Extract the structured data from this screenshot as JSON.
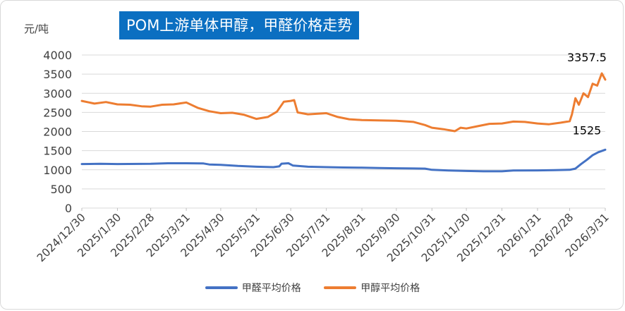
{
  "chart_data": {
    "type": "line",
    "title": "POM上游单体甲醇，甲醛价格走势",
    "ylabel": "元/吨",
    "ylim": [
      0,
      4000
    ],
    "y_ticks": [
      0,
      500,
      1000,
      1500,
      2000,
      2500,
      3000,
      3500,
      4000
    ],
    "x_tick_labels": [
      "2024/12/30",
      "2025/1/30",
      "2025/2/28",
      "2025/3/31",
      "2025/4/30",
      "2025/5/31",
      "2025/6/30",
      "2025/7/31",
      "2025/8/31",
      "2025/9/30",
      "2025/10/31",
      "2025/11/30",
      "2025/12/31",
      "2026/1/31",
      "2026/2/28",
      "2026/3/31"
    ],
    "grid": "horizontal",
    "legend_position": "bottom",
    "series": [
      {
        "name": "甲醛平均价格",
        "color": "#4472c4",
        "points": [
          [
            "2024/12/30",
            1150
          ],
          [
            "2025/1/15",
            1155
          ],
          [
            "2025/1/30",
            1150
          ],
          [
            "2025/2/28",
            1155
          ],
          [
            "2025/3/15",
            1170
          ],
          [
            "2025/3/31",
            1170
          ],
          [
            "2025/4/15",
            1165
          ],
          [
            "2025/4/20",
            1140
          ],
          [
            "2025/4/30",
            1130
          ],
          [
            "2025/5/15",
            1100
          ],
          [
            "2025/5/31",
            1080
          ],
          [
            "2025/6/15",
            1070
          ],
          [
            "2025/6/20",
            1090
          ],
          [
            "2025/6/22",
            1160
          ],
          [
            "2025/6/28",
            1170
          ],
          [
            "2025/7/2",
            1110
          ],
          [
            "2025/7/15",
            1080
          ],
          [
            "2025/7/31",
            1070
          ],
          [
            "2025/8/15",
            1060
          ],
          [
            "2025/8/31",
            1055
          ],
          [
            "2025/9/15",
            1045
          ],
          [
            "2025/9/30",
            1040
          ],
          [
            "2025/10/15",
            1035
          ],
          [
            "2025/10/25",
            1030
          ],
          [
            "2025/10/31",
            1000
          ],
          [
            "2025/11/15",
            980
          ],
          [
            "2025/11/30",
            970
          ],
          [
            "2025/12/15",
            960
          ],
          [
            "2025/12/31",
            960
          ],
          [
            "2026/1/10",
            980
          ],
          [
            "2026/1/31",
            985
          ],
          [
            "2026/2/15",
            990
          ],
          [
            "2026/2/28",
            1000
          ],
          [
            "2026/3/5",
            1030
          ],
          [
            "2026/3/10",
            1150
          ],
          [
            "2026/3/15",
            1260
          ],
          [
            "2026/3/20",
            1380
          ],
          [
            "2026/3/25",
            1460
          ],
          [
            "2026/3/31",
            1525
          ]
        ]
      },
      {
        "name": "甲醇平均价格",
        "color": "#ed7d31",
        "points": [
          [
            "2024/12/30",
            2800
          ],
          [
            "2025/1/10",
            2730
          ],
          [
            "2025/1/20",
            2770
          ],
          [
            "2025/1/30",
            2710
          ],
          [
            "2025/2/10",
            2700
          ],
          [
            "2025/2/20",
            2660
          ],
          [
            "2025/2/28",
            2650
          ],
          [
            "2025/3/10",
            2700
          ],
          [
            "2025/3/20",
            2710
          ],
          [
            "2025/3/31",
            2760
          ],
          [
            "2025/4/10",
            2620
          ],
          [
            "2025/4/20",
            2530
          ],
          [
            "2025/4/30",
            2480
          ],
          [
            "2025/5/10",
            2490
          ],
          [
            "2025/5/20",
            2440
          ],
          [
            "2025/5/31",
            2330
          ],
          [
            "2025/6/10",
            2380
          ],
          [
            "2025/6/18",
            2520
          ],
          [
            "2025/6/24",
            2780
          ],
          [
            "2025/6/30",
            2800
          ],
          [
            "2025/7/3",
            2820
          ],
          [
            "2025/7/6",
            2500
          ],
          [
            "2025/7/15",
            2450
          ],
          [
            "2025/7/31",
            2480
          ],
          [
            "2025/8/10",
            2380
          ],
          [
            "2025/8/20",
            2320
          ],
          [
            "2025/8/31",
            2300
          ],
          [
            "2025/9/15",
            2290
          ],
          [
            "2025/9/30",
            2280
          ],
          [
            "2025/10/15",
            2250
          ],
          [
            "2025/10/25",
            2170
          ],
          [
            "2025/10/31",
            2100
          ],
          [
            "2025/11/10",
            2060
          ],
          [
            "2025/11/20",
            2010
          ],
          [
            "2025/11/25",
            2100
          ],
          [
            "2025/11/30",
            2080
          ],
          [
            "2025/12/10",
            2140
          ],
          [
            "2025/12/20",
            2200
          ],
          [
            "2025/12/31",
            2210
          ],
          [
            "2026/1/10",
            2260
          ],
          [
            "2026/1/20",
            2250
          ],
          [
            "2026/1/31",
            2210
          ],
          [
            "2026/2/10",
            2190
          ],
          [
            "2026/2/20",
            2230
          ],
          [
            "2026/2/28",
            2270
          ],
          [
            "2026/3/2",
            2450
          ],
          [
            "2026/3/5",
            2870
          ],
          [
            "2026/3/8",
            2700
          ],
          [
            "2026/3/12",
            3000
          ],
          [
            "2026/3/16",
            2900
          ],
          [
            "2026/3/20",
            3250
          ],
          [
            "2026/3/24",
            3200
          ],
          [
            "2026/3/28",
            3520
          ],
          [
            "2026/3/31",
            3357.5
          ]
        ]
      }
    ],
    "end_labels": [
      "1525",
      "3357.5"
    ]
  }
}
